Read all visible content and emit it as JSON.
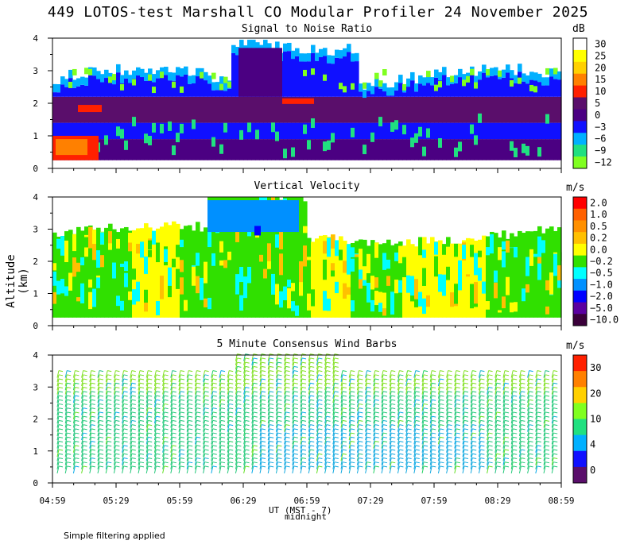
{
  "title": "449 LOTOS-test Marshall CO Modular Profiler 24 November 2025",
  "y_axis_title": "Altitude (km)",
  "x_axis_title": "UT (MST - 7)",
  "midnight_label": "midnight",
  "footnote": "Simple filtering applied",
  "chart_data": [
    {
      "type": "heatmap",
      "title": "Signal to Noise Ratio",
      "unit": "dB",
      "x_ticks": [
        "04:59",
        "05:29",
        "05:59",
        "06:29",
        "06:59",
        "07:29",
        "07:59",
        "08:29",
        "08:59"
      ],
      "y_ticks": [
        0,
        1,
        2,
        3,
        4
      ],
      "ylim": [
        0,
        4
      ],
      "colorbar": {
        "labels": [
          "30",
          "25",
          "20",
          "15",
          "10",
          "5",
          "0",
          "−3",
          "−6",
          "−9",
          "−12"
        ],
        "colors": [
          "#ffffff",
          "#ffff00",
          "#ffd000",
          "#ff8000",
          "#ff2000",
          "#5a0e6b",
          "#4b0082",
          "#1010ff",
          "#00b0ff",
          "#20e080",
          "#80ff20"
        ]
      }
    },
    {
      "type": "heatmap",
      "title": "Vertical Velocity",
      "unit": "m/s",
      "x_ticks": [
        "04:59",
        "05:29",
        "05:59",
        "06:29",
        "06:59",
        "07:29",
        "07:59",
        "08:29",
        "08:59"
      ],
      "y_ticks": [
        0,
        1,
        2,
        3,
        4
      ],
      "ylim": [
        0,
        4
      ],
      "colorbar": {
        "labels": [
          "2.0",
          "1.0",
          "0.5",
          "0.2",
          "0.0",
          "−0.2",
          "−0.5",
          "−1.0",
          "−2.0",
          "−5.0",
          "−10.0"
        ],
        "colors": [
          "#ff0000",
          "#ff6000",
          "#ff9000",
          "#ffc000",
          "#ffff00",
          "#30e000",
          "#00ffff",
          "#0090ff",
          "#0000ff",
          "#5a00a0",
          "#3a003a"
        ]
      }
    },
    {
      "type": "wind-barbs",
      "title": "5 Minute Consensus Wind Barbs",
      "unit": "m/s",
      "x_ticks": [
        "04:59",
        "05:29",
        "05:59",
        "06:29",
        "06:59",
        "07:29",
        "07:59",
        "08:29",
        "08:59"
      ],
      "y_ticks": [
        0,
        1,
        2,
        3,
        4
      ],
      "ylim": [
        0,
        4
      ],
      "colorbar": {
        "labels": [
          "30",
          "20",
          "10",
          "4",
          "0"
        ],
        "colors": [
          "#ff2000",
          "#ff8000",
          "#ffd000",
          "#80ff20",
          "#20e080",
          "#00b0ff",
          "#1010ff",
          "#5a0e6b"
        ]
      }
    }
  ]
}
